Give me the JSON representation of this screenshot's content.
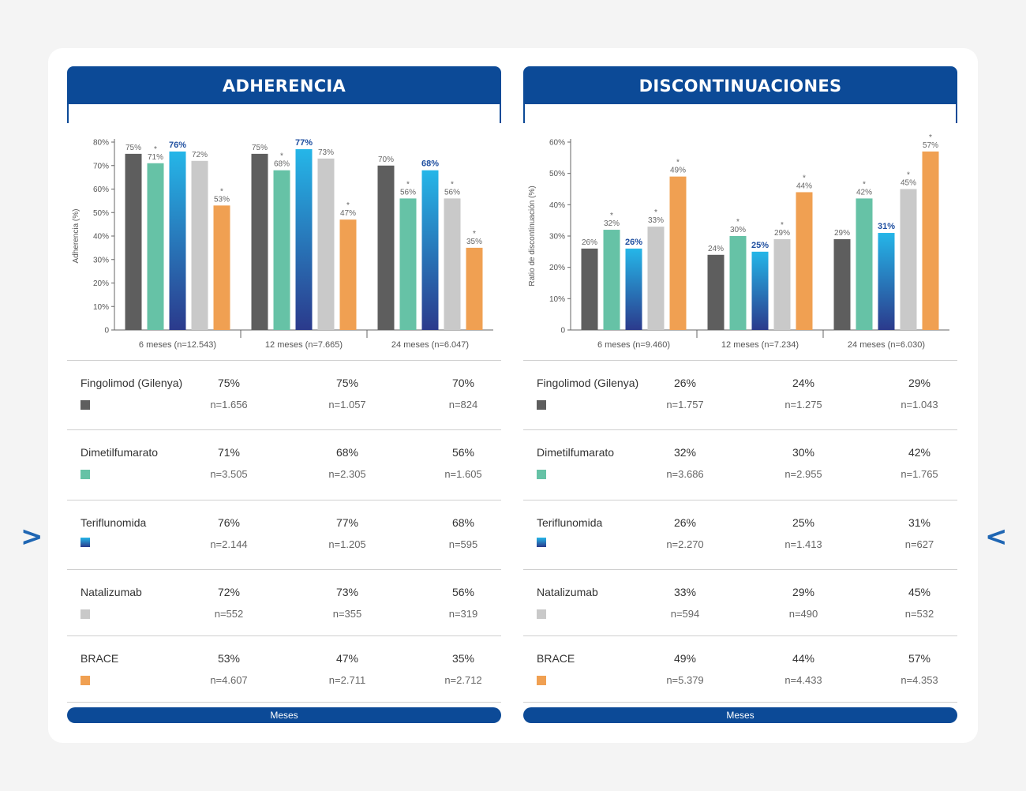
{
  "colors": {
    "primary": "#0c4a97",
    "fingolimod": "#5e5e5e",
    "dimetil": "#66c2a6",
    "teriflunomida_top": "#25b6e8",
    "teriflunomida_bottom": "#2b3a8c",
    "natalizumab": "#c9c9c9",
    "brace": "#f0a052"
  },
  "nav": {
    "prev_icon": "chevron-right",
    "next_icon": "chevron-left",
    "prev": ">",
    "next": "<"
  },
  "panels": [
    {
      "title": "ADHERENCIA",
      "footer": "Meses",
      "chart_data": {
        "type": "bar",
        "title": "ADHERENCIA",
        "ylabel": "Adherencia (%)",
        "ylim": [
          0,
          80
        ],
        "yticks": [
          "0",
          "10%",
          "20%",
          "30%",
          "40%",
          "50%",
          "60%",
          "70%",
          "80%"
        ],
        "categories": [
          "6 meses (n=12.543)",
          "12 meses (n=7.665)",
          "24 meses (n=6.047)"
        ],
        "series": [
          {
            "name": "Fingolimod (Gilenya)",
            "values": [
              75,
              75,
              70
            ],
            "star": [
              false,
              false,
              false
            ]
          },
          {
            "name": "Dimetilfumarato",
            "values": [
              71,
              68,
              56
            ],
            "star": [
              true,
              true,
              true
            ]
          },
          {
            "name": "Teriflunomida",
            "values": [
              76,
              77,
              68
            ],
            "star": [
              false,
              false,
              false
            ]
          },
          {
            "name": "Natalizumab",
            "values": [
              72,
              73,
              56
            ],
            "star": [
              false,
              false,
              true
            ]
          },
          {
            "name": "BRACE",
            "values": [
              53,
              47,
              35
            ],
            "star": [
              true,
              true,
              true
            ]
          }
        ]
      },
      "table": [
        {
          "name": "Fingolimod (Gilenya)",
          "pct": [
            "75%",
            "75%",
            "70%"
          ],
          "n": [
            "n=1.656",
            "n=1.057",
            "n=824"
          ]
        },
        {
          "name": "Dimetilfumarato",
          "pct": [
            "71%",
            "68%",
            "56%"
          ],
          "n": [
            "n=3.505",
            "n=2.305",
            "n=1.605"
          ]
        },
        {
          "name": "Teriflunomida",
          "pct": [
            "76%",
            "77%",
            "68%"
          ],
          "n": [
            "n=2.144",
            "n=1.205",
            "n=595"
          ]
        },
        {
          "name": "Natalizumab",
          "pct": [
            "72%",
            "73%",
            "56%"
          ],
          "n": [
            "n=552",
            "n=355",
            "n=319"
          ]
        },
        {
          "name": "BRACE",
          "pct": [
            "53%",
            "47%",
            "35%"
          ],
          "n": [
            "n=4.607",
            "n=2.711",
            "n=2.712"
          ]
        }
      ]
    },
    {
      "title": "DISCONTINUACIONES",
      "footer": "Meses",
      "chart_data": {
        "type": "bar",
        "title": "DISCONTINUACIONES",
        "ylabel": "Ratio de discontinuación (%)",
        "ylim": [
          0,
          60
        ],
        "yticks": [
          "0",
          "10%",
          "20%",
          "30%",
          "40%",
          "50%",
          "60%"
        ],
        "categories": [
          "6 meses (n=9.460)",
          "12 meses (n=7.234)",
          "24 meses (n=6.030)"
        ],
        "series": [
          {
            "name": "Fingolimod (Gilenya)",
            "values": [
              26,
              24,
              29
            ],
            "star": [
              false,
              false,
              false
            ]
          },
          {
            "name": "Dimetilfumarato",
            "values": [
              32,
              30,
              42
            ],
            "star": [
              true,
              true,
              true
            ]
          },
          {
            "name": "Teriflunomida",
            "values": [
              26,
              25,
              31
            ],
            "star": [
              false,
              false,
              false
            ]
          },
          {
            "name": "Natalizumab",
            "values": [
              33,
              29,
              45
            ],
            "star": [
              true,
              true,
              true
            ]
          },
          {
            "name": "BRACE",
            "values": [
              49,
              44,
              57
            ],
            "star": [
              true,
              true,
              true
            ]
          }
        ]
      },
      "table": [
        {
          "name": "Fingolimod (Gilenya)",
          "pct": [
            "26%",
            "24%",
            "29%"
          ],
          "n": [
            "n=1.757",
            "n=1.275",
            "n=1.043"
          ]
        },
        {
          "name": "Dimetilfumarato",
          "pct": [
            "32%",
            "30%",
            "42%"
          ],
          "n": [
            "n=3.686",
            "n=2.955",
            "n=1.765"
          ]
        },
        {
          "name": "Teriflunomida",
          "pct": [
            "26%",
            "25%",
            "31%"
          ],
          "n": [
            "n=2.270",
            "n=1.413",
            "n=627"
          ]
        },
        {
          "name": "Natalizumab",
          "pct": [
            "33%",
            "29%",
            "45%"
          ],
          "n": [
            "n=594",
            "n=490",
            "n=532"
          ]
        },
        {
          "name": "BRACE",
          "pct": [
            "49%",
            "44%",
            "57%"
          ],
          "n": [
            "n=5.379",
            "n=4.433",
            "n=4.353"
          ]
        }
      ]
    }
  ]
}
